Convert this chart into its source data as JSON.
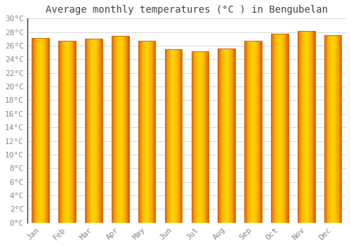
{
  "title": "Average monthly temperatures (°C ) in Bengubelan",
  "months": [
    "Jan",
    "Feb",
    "Mar",
    "Apr",
    "May",
    "Jun",
    "Jul",
    "Aug",
    "Sep",
    "Oct",
    "Nov",
    "Dec"
  ],
  "values": [
    27.1,
    26.7,
    27.0,
    27.4,
    26.7,
    25.5,
    25.2,
    25.6,
    26.7,
    27.8,
    28.2,
    27.6
  ],
  "bar_color_center": "#FFB300",
  "bar_color_edge": "#E65C00",
  "ylim": [
    0,
    30
  ],
  "ytick_step": 2,
  "background_color": "#FFFFFF",
  "grid_color": "#D8D8D8",
  "title_fontsize": 10,
  "tick_fontsize": 8,
  "font_family": "monospace",
  "bar_width": 0.65
}
